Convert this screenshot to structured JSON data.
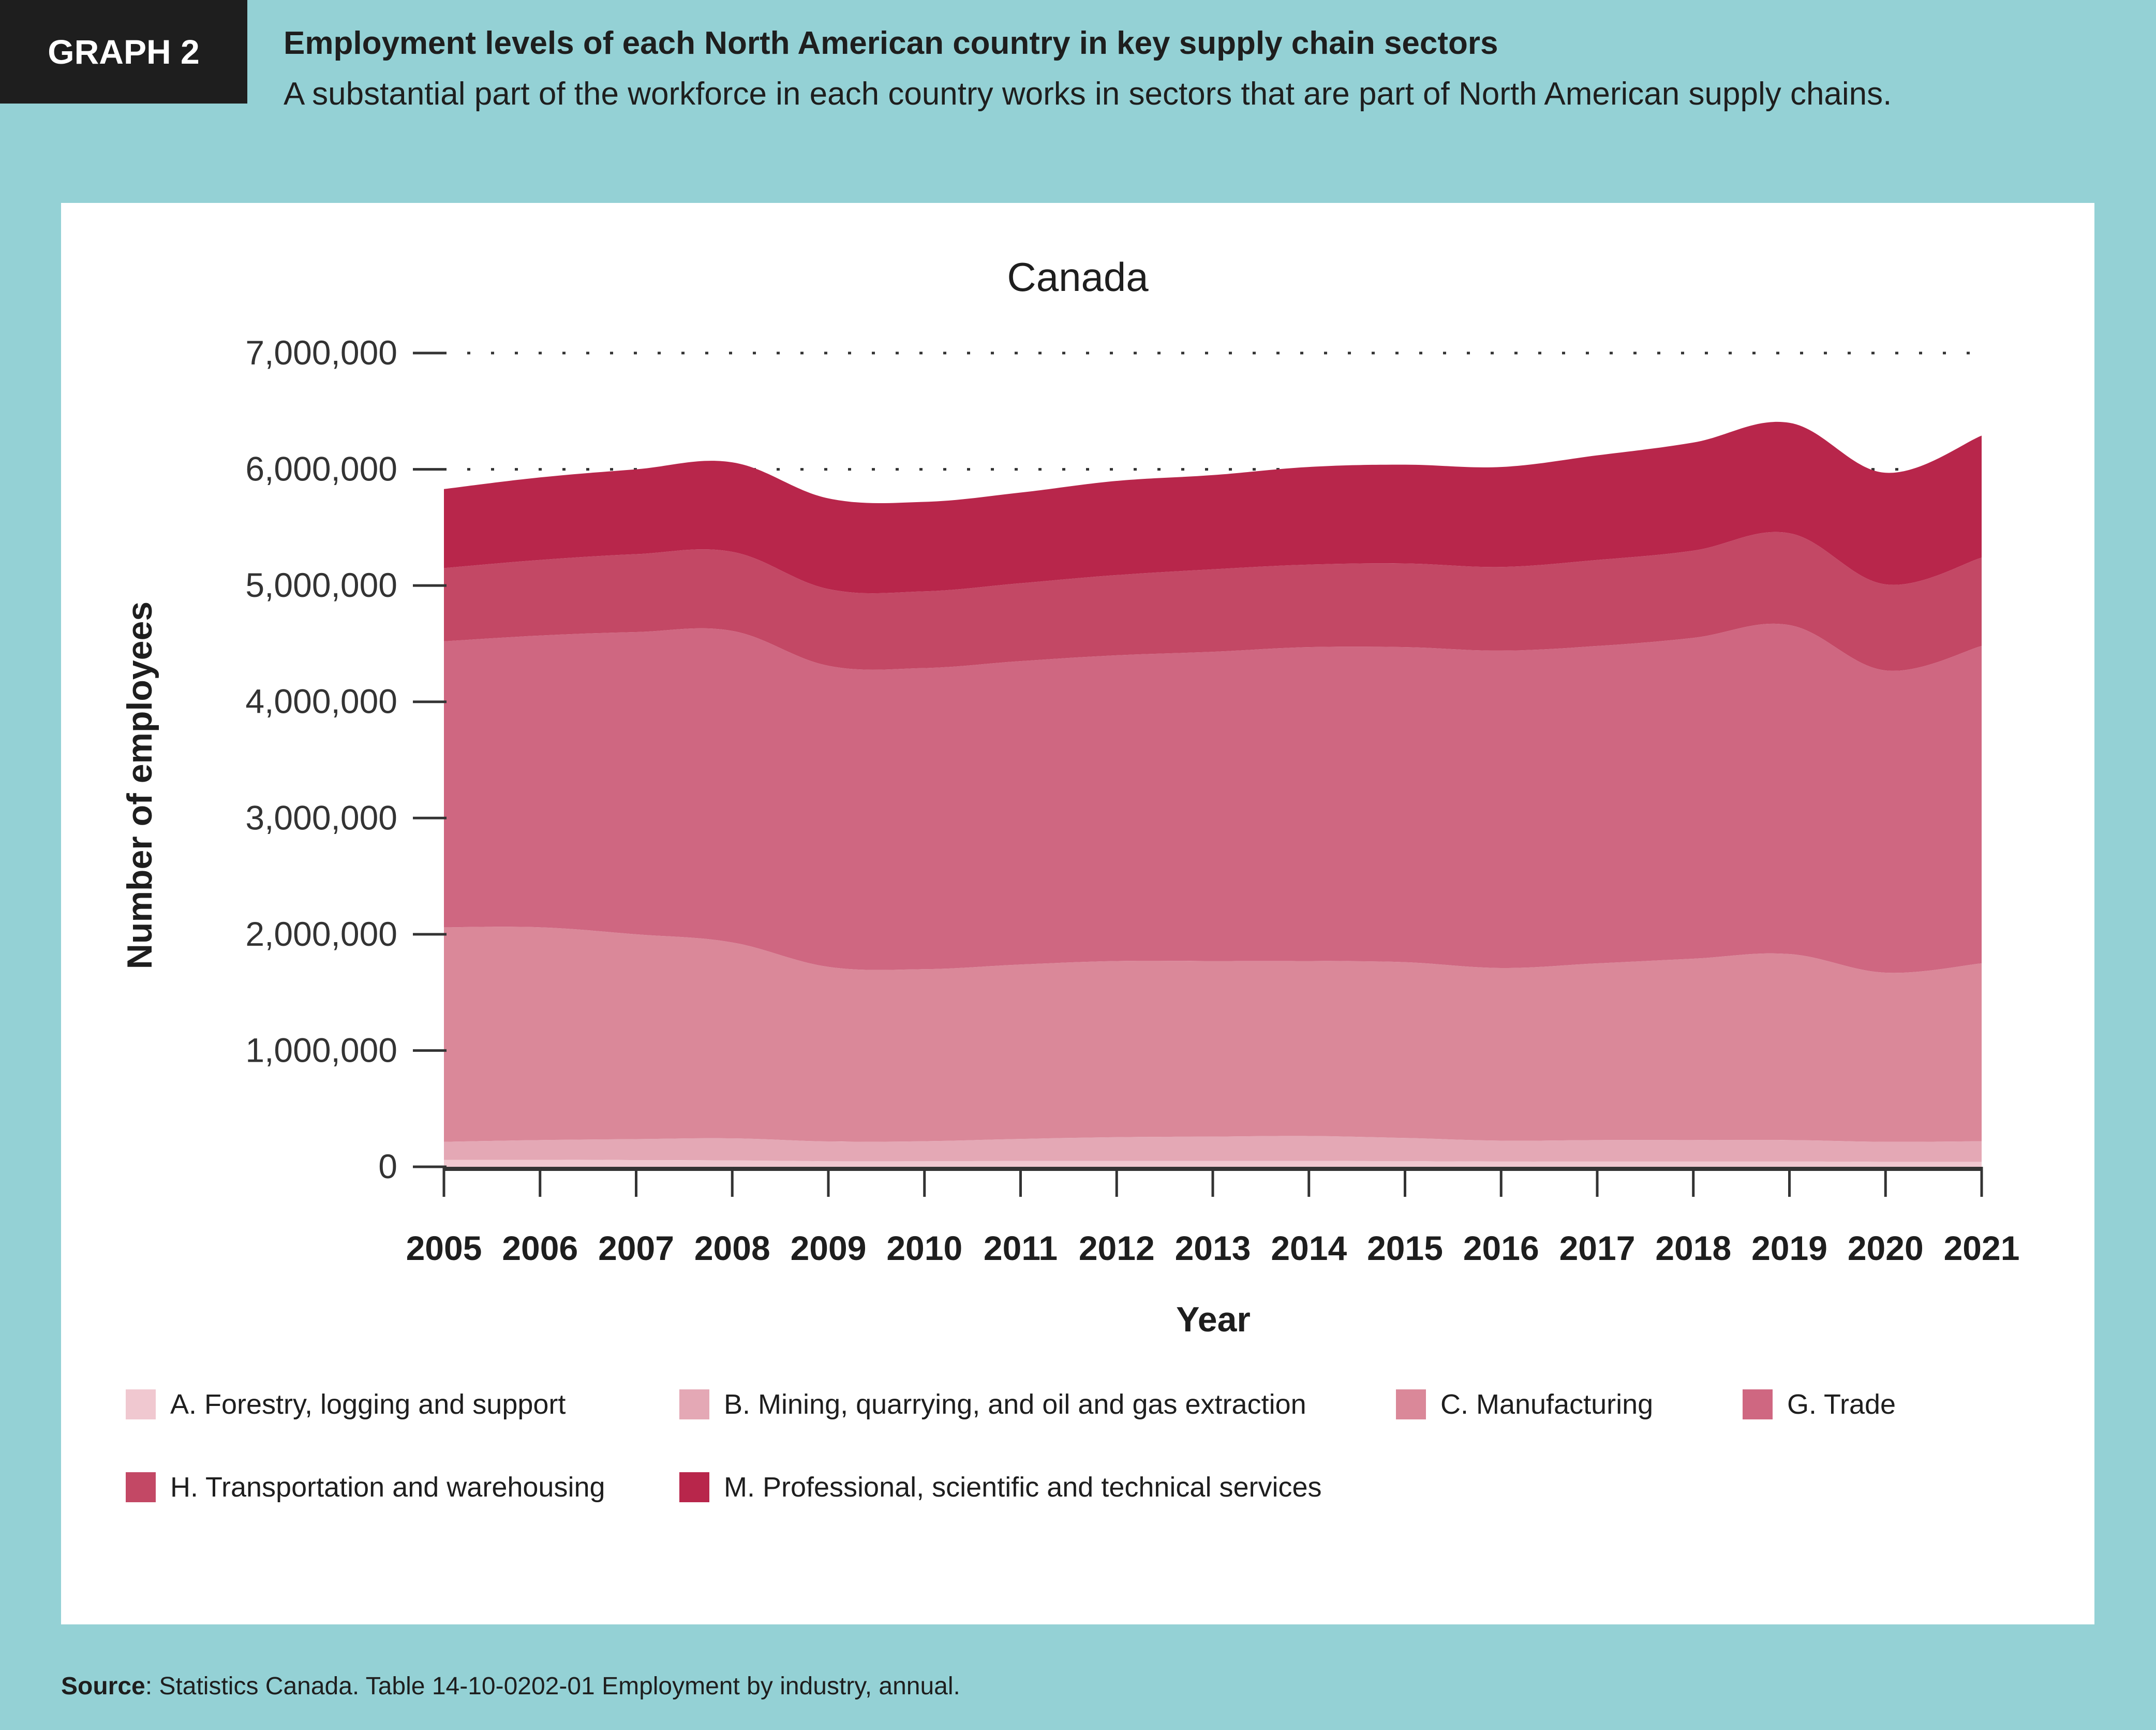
{
  "header": {
    "tag": "GRAPH 2",
    "title": "Employment levels of each North American country in key supply chain sectors",
    "subtitle": "A substantial part of the workforce in each country works in sectors that are part of North American supply chains."
  },
  "source": {
    "label": "Source",
    "text": ": Statistics Canada. Table 14-10-0202-01  Employment by industry, annual."
  },
  "colors": {
    "background": "#94d1d5",
    "panel": "#ffffff",
    "tag_bg": "#1e1e1e"
  },
  "chart_data": {
    "type": "area",
    "stacked": true,
    "title": "Canada",
    "xlabel": "Year",
    "ylabel": "Number of employees",
    "ylim": [
      0,
      7000000
    ],
    "yticks": [
      0,
      1000000,
      2000000,
      3000000,
      4000000,
      5000000,
      6000000,
      7000000
    ],
    "ytick_labels": [
      "0",
      "1,000,000",
      "2,000,000",
      "3,000,000",
      "4,000,000",
      "5,000,000",
      "6,000,000",
      "7,000,000"
    ],
    "grid": "dotted horizontal at 6,000,000 and 7,000,000",
    "legend_position": "bottom",
    "x": [
      "2005",
      "2006",
      "2007",
      "2008",
      "2009",
      "2010",
      "2011",
      "2012",
      "2013",
      "2014",
      "2015",
      "2016",
      "2017",
      "2018",
      "2019",
      "2020",
      "2021"
    ],
    "series": [
      {
        "name": "A. Forestry, logging and support",
        "color": "#f0c8d0",
        "values": [
          60000,
          60000,
          58000,
          55000,
          48000,
          48000,
          50000,
          50000,
          50000,
          50000,
          48000,
          45000,
          45000,
          45000,
          45000,
          43000,
          43000
        ]
      },
      {
        "name": "B. Mining, quarrying, and oil and gas extraction",
        "color": "#e4a8b5",
        "values": [
          155000,
          170000,
          180000,
          190000,
          170000,
          172000,
          190000,
          205000,
          210000,
          215000,
          200000,
          180000,
          185000,
          185000,
          185000,
          172000,
          177000
        ]
      },
      {
        "name": "C. Manufacturing",
        "color": "#da8899",
        "values": [
          1845000,
          1830000,
          1762000,
          1685000,
          1502000,
          1480000,
          1500000,
          1515000,
          1510000,
          1505000,
          1512000,
          1485000,
          1520000,
          1560000,
          1600000,
          1455000,
          1530000
        ]
      },
      {
        "name": "G. Trade",
        "color": "#cf6781",
        "values": [
          2460000,
          2510000,
          2600000,
          2680000,
          2590000,
          2590000,
          2610000,
          2630000,
          2660000,
          2700000,
          2710000,
          2730000,
          2730000,
          2760000,
          2830000,
          2600000,
          2730000
        ]
      },
      {
        "name": "H. Transportation and warehousing",
        "color": "#c34865",
        "values": [
          630000,
          650000,
          670000,
          680000,
          660000,
          660000,
          670000,
          690000,
          710000,
          710000,
          720000,
          720000,
          740000,
          750000,
          790000,
          740000,
          760000
        ]
      },
      {
        "name": "M. Professional, scientific and technical services",
        "color": "#b8264b",
        "values": [
          680000,
          710000,
          730000,
          770000,
          780000,
          770000,
          780000,
          810000,
          810000,
          840000,
          850000,
          860000,
          900000,
          930000,
          950000,
          960000,
          1050000
        ]
      }
    ]
  }
}
